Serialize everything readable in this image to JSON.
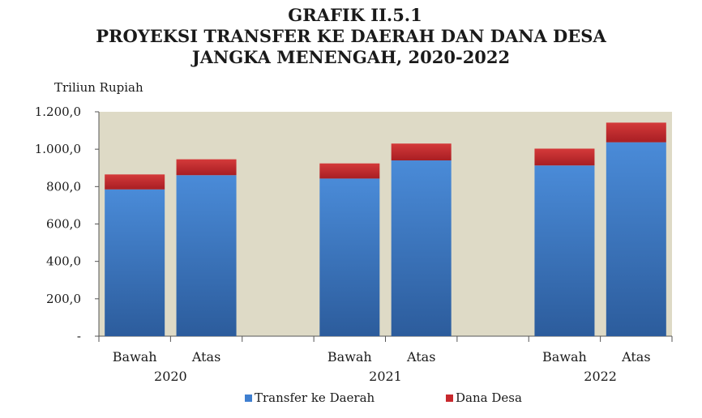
{
  "title": {
    "line1": "GRAFIK II.5.1",
    "line2": "PROYEKSI TRANSFER KE DAERAH DAN DANA DESA",
    "line3": "JANGKA MENENGAH, 2020-2022"
  },
  "chart_data": {
    "type": "bar",
    "stacked": true,
    "ylabel": "Triliun Rupiah",
    "ylim": [
      0,
      1200
    ],
    "yticks": [
      {
        "value": 0,
        "label": "-"
      },
      {
        "value": 200,
        "label": "200,0"
      },
      {
        "value": 400,
        "label": "400,0"
      },
      {
        "value": 600,
        "label": "600,0"
      },
      {
        "value": 800,
        "label": "800,0"
      },
      {
        "value": 1000,
        "label": "1.000,0"
      },
      {
        "value": 1200,
        "label": "1.200,0"
      }
    ],
    "groups": [
      {
        "label": "2020",
        "categories": [
          "Bawah",
          "Atas"
        ]
      },
      {
        "label": "2021",
        "categories": [
          "Bawah",
          "Atas"
        ]
      },
      {
        "label": "2022",
        "categories": [
          "Bawah",
          "Atas"
        ]
      }
    ],
    "series": [
      {
        "name": "Transfer ke Daerah",
        "color": "#3f7fd0",
        "values": [
          785,
          861,
          843,
          940,
          913,
          1037
        ]
      },
      {
        "name": "Dana Desa",
        "color": "#c8282d",
        "values": [
          80,
          85,
          81,
          90,
          90,
          105
        ]
      }
    ],
    "plot_background": "#dedac6",
    "grid": false,
    "legend_position": "bottom"
  }
}
